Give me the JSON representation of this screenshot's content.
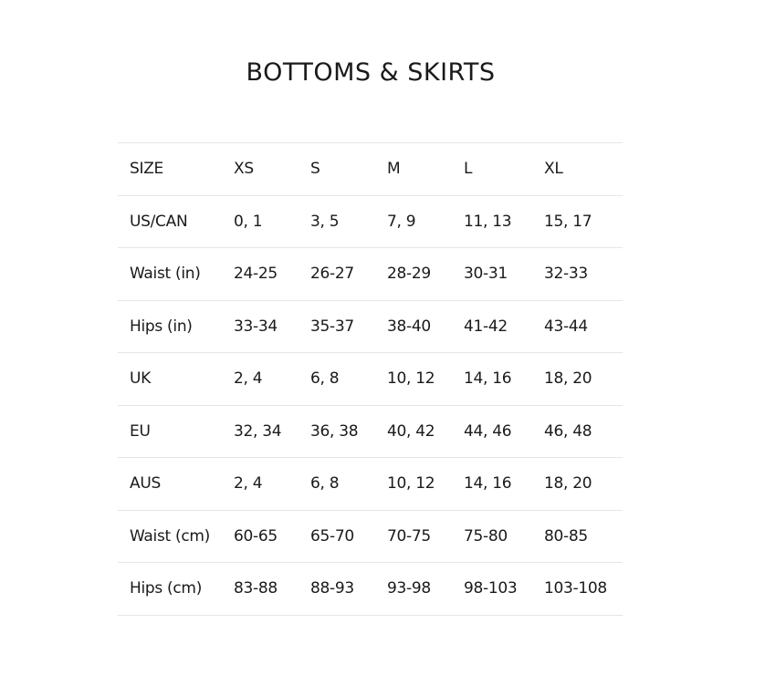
{
  "title": "BOTTOMS & SKIRTS",
  "rows": [
    [
      "SIZE",
      "XS",
      "S",
      "M",
      "L",
      "XL"
    ],
    [
      "US/CAN",
      "0, 1",
      "3, 5",
      "7, 9",
      "11, 13",
      "15, 17"
    ],
    [
      "Waist (in)",
      "24-25",
      "26-27",
      "28-29",
      "30-31",
      "32-33"
    ],
    [
      "Hips (in)",
      "33-34",
      "35-37",
      "38-40",
      "41-42",
      "43-44"
    ],
    [
      "UK",
      "2, 4",
      "6, 8",
      "10, 12",
      "14, 16",
      "18, 20"
    ],
    [
      "EU",
      "32, 34",
      "36, 38",
      "40, 42",
      "44, 46",
      "46, 48"
    ],
    [
      "AUS",
      "2, 4",
      "6, 8",
      "10, 12",
      "14, 16",
      "18, 20"
    ],
    [
      "Waist (cm)",
      "60-65",
      "65-70",
      "70-75",
      "75-80",
      "80-85"
    ],
    [
      "Hips (cm)",
      "83-88",
      "88-93",
      "93-98",
      "98-103",
      "103-108"
    ]
  ]
}
